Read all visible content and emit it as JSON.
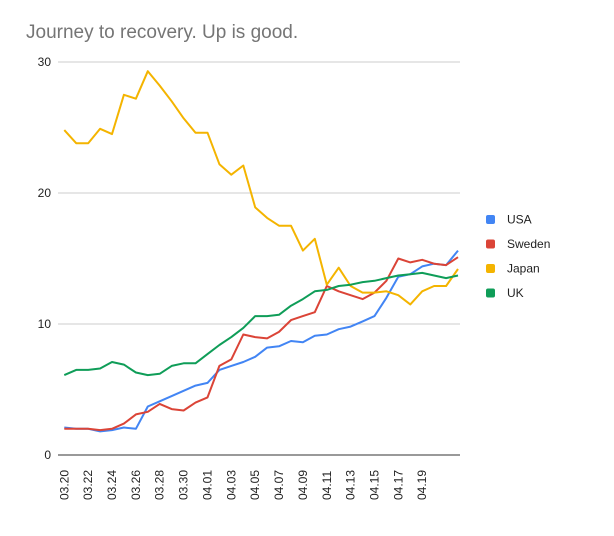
{
  "chart_data": {
    "type": "line",
    "title": "Journey to recovery. Up is good.",
    "xlabel": "",
    "ylabel": "",
    "ylim": [
      0,
      30
    ],
    "yticks": [
      0,
      10,
      20,
      30
    ],
    "grid": true,
    "legend": "right",
    "categories": [
      "03.20",
      "03.21",
      "03.22",
      "03.23",
      "03.24",
      "03.25",
      "03.26",
      "03.27",
      "03.28",
      "03.29",
      "03.30",
      "03.31",
      "04.01",
      "04.02",
      "04.03",
      "04.04",
      "04.05",
      "04.06",
      "04.07",
      "04.08",
      "04.09",
      "04.10",
      "04.11",
      "04.12",
      "04.13",
      "04.14",
      "04.15",
      "04.16",
      "04.17",
      "04.18",
      "04.19",
      "04.20",
      "04.21",
      "04.22"
    ],
    "tick_labels": [
      "03.20",
      "03.22",
      "03.24",
      "03.26",
      "03.28",
      "03.30",
      "04.01",
      "04.03",
      "04.05",
      "04.07",
      "04.09",
      "04.11",
      "04.13",
      "04.15",
      "04.17",
      "04.19"
    ],
    "series": [
      {
        "name": "USA",
        "color": "#4285f4",
        "values": [
          2.1,
          2.0,
          2.0,
          1.8,
          1.9,
          2.1,
          2.0,
          3.7,
          4.1,
          4.5,
          4.9,
          5.3,
          5.5,
          6.5,
          6.8,
          7.1,
          7.5,
          8.2,
          8.3,
          8.7,
          8.6,
          9.1,
          9.2,
          9.6,
          9.8,
          10.2,
          10.6,
          12.0,
          13.6,
          13.8,
          14.4,
          14.6,
          14.5,
          15.6
        ]
      },
      {
        "name": "Sweden",
        "color": "#db4437",
        "values": [
          2.0,
          2.0,
          2.0,
          1.9,
          2.0,
          2.4,
          3.1,
          3.3,
          3.9,
          3.5,
          3.4,
          4.0,
          4.4,
          6.8,
          7.3,
          9.2,
          9.0,
          8.9,
          9.4,
          10.3,
          10.6,
          10.9,
          12.9,
          12.5,
          12.2,
          11.9,
          12.4,
          13.3,
          15.0,
          14.7,
          14.9,
          14.6,
          14.5,
          15.1
        ]
      },
      {
        "name": "Japan",
        "color": "#f4b400",
        "values": [
          24.8,
          23.8,
          23.8,
          24.9,
          24.5,
          27.5,
          27.2,
          29.3,
          28.2,
          27.0,
          25.7,
          24.6,
          24.6,
          22.2,
          21.4,
          22.1,
          18.9,
          18.1,
          17.5,
          17.5,
          15.6,
          16.5,
          13.0,
          14.3,
          12.9,
          12.4,
          12.4,
          12.5,
          12.2,
          11.5,
          12.5,
          12.9,
          12.9,
          14.2
        ]
      },
      {
        "name": "UK",
        "color": "#0f9d58",
        "values": [
          6.1,
          6.5,
          6.5,
          6.6,
          7.1,
          6.9,
          6.3,
          6.1,
          6.2,
          6.8,
          7.0,
          7.0,
          7.7,
          8.4,
          9.0,
          9.7,
          10.6,
          10.6,
          10.7,
          11.4,
          11.9,
          12.5,
          12.6,
          12.9,
          13.0,
          13.2,
          13.3,
          13.5,
          13.7,
          13.8,
          13.9,
          13.7,
          13.5,
          13.7
        ]
      }
    ]
  }
}
